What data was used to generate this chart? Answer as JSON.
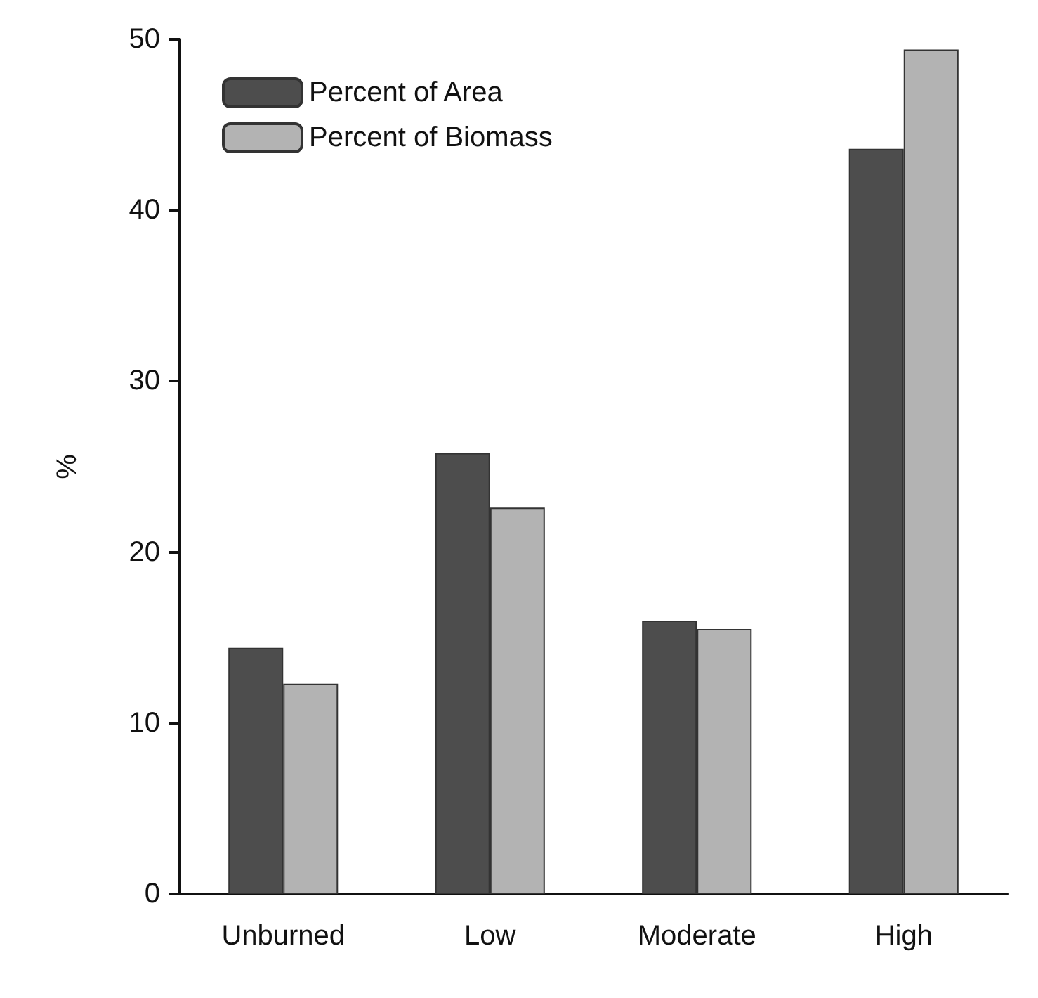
{
  "chart_data": {
    "type": "bar",
    "ylabel": "%",
    "categories": [
      "Unburned",
      "Low",
      "Moderate",
      "High"
    ],
    "series": [
      {
        "name": "Percent of Area",
        "color": "#4d4d4d",
        "values": [
          14.4,
          25.8,
          16.0,
          43.6
        ]
      },
      {
        "name": "Percent of Biomass",
        "color": "#b3b3b3",
        "values": [
          12.3,
          22.6,
          15.5,
          49.4
        ]
      }
    ],
    "ylim": [
      0,
      50
    ],
    "yticks": [
      0,
      10,
      20,
      30,
      40,
      50
    ],
    "grid": false,
    "legend": "top left"
  }
}
